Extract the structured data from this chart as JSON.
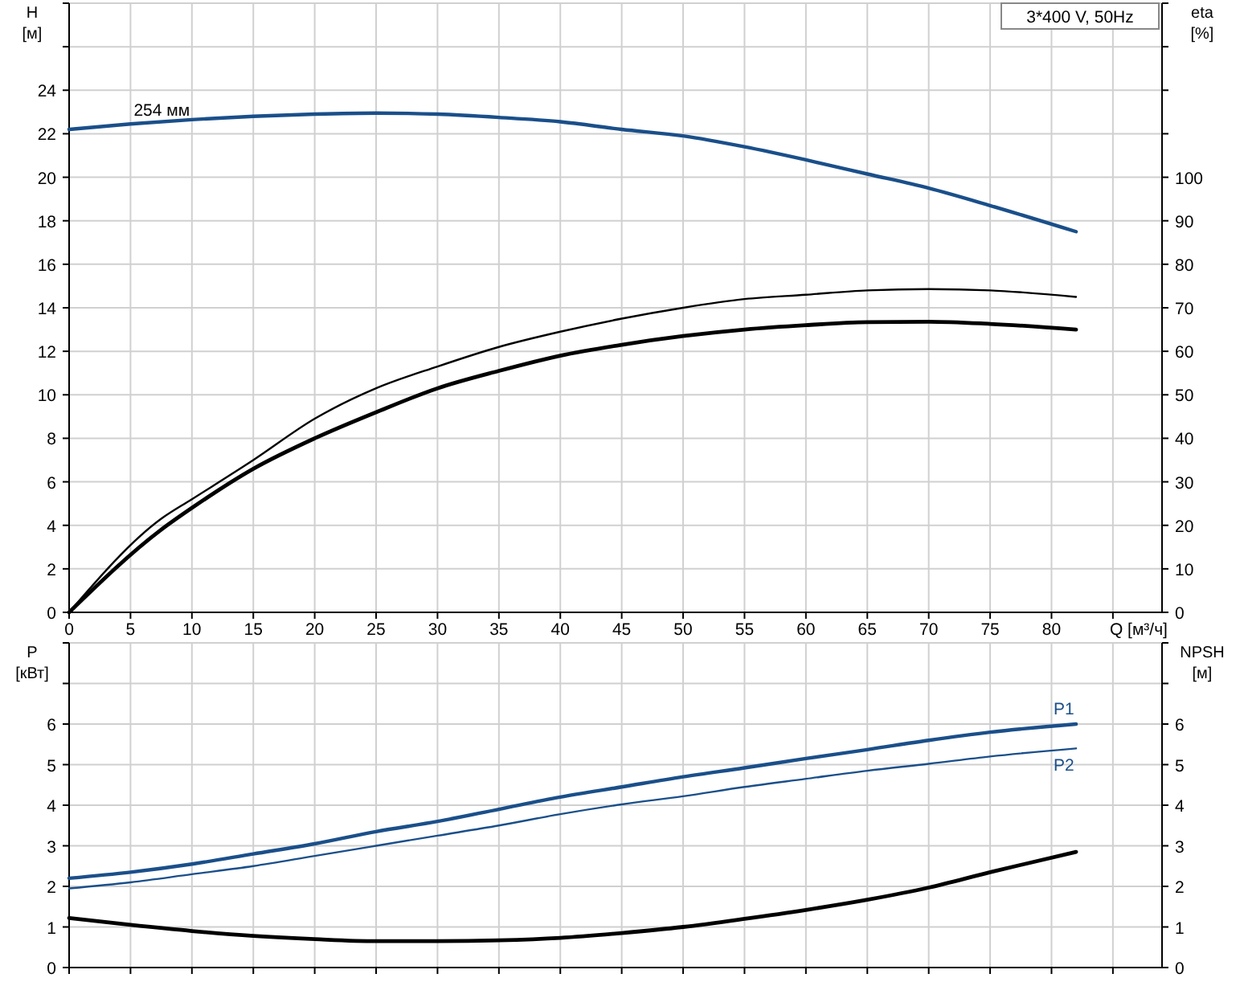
{
  "chart_data": [
    {
      "type": "line",
      "title": "3*400 V, 50Hz",
      "xlabel": "Q [м³/ч]",
      "ylabel": "H [м]",
      "y2label": "eta [%]",
      "xlim": [
        0,
        89
      ],
      "xticks": [
        0,
        5,
        10,
        15,
        20,
        25,
        30,
        35,
        40,
        45,
        50,
        55,
        60,
        65,
        70,
        75,
        80,
        {
          "value": 85,
          "label": null
        }
      ],
      "ylim": [
        0,
        28
      ],
      "yticks": [
        0,
        2,
        4,
        6,
        8,
        10,
        12,
        14,
        16,
        18,
        20,
        22,
        24,
        {
          "value": 26,
          "label": null
        },
        {
          "value": 28,
          "label": null
        }
      ],
      "y2lim": [
        0,
        140
      ],
      "y2ticks": [
        0,
        10,
        20,
        30,
        40,
        50,
        60,
        70,
        80,
        90,
        100,
        {
          "value": 110,
          "label": null
        },
        {
          "value": 120,
          "label": null
        },
        {
          "value": 130,
          "label": null
        },
        {
          "value": 140,
          "label": null
        }
      ],
      "grid": true,
      "series": [
        {
          "name": "254 мм",
          "color": "#1a4f8a",
          "x": [
            0,
            5,
            10,
            15,
            20,
            25,
            30,
            35,
            40,
            45,
            50,
            55,
            60,
            65,
            70,
            75,
            82
          ],
          "values": [
            22.2,
            22.45,
            22.65,
            22.8,
            22.9,
            22.95,
            22.9,
            22.75,
            22.55,
            22.2,
            21.9,
            21.4,
            20.8,
            20.15,
            19.5,
            18.7,
            17.5
          ]
        },
        {
          "color": "#000000",
          "axis": "y2",
          "x": [
            0,
            7.5,
            10,
            15,
            20,
            25,
            30,
            35,
            40,
            45,
            50,
            55,
            60,
            65,
            70,
            75,
            82
          ],
          "values": [
            0,
            21.5,
            26,
            35,
            44.5,
            51.5,
            56.5,
            61,
            64.5,
            67.5,
            70,
            72,
            73,
            74,
            74.3,
            74,
            72.5
          ]
        },
        {
          "color": "#000000",
          "axis": "y2",
          "x": [
            0,
            7.5,
            10,
            15,
            20,
            25,
            30,
            35,
            40,
            45,
            50,
            55,
            60,
            65,
            70,
            75,
            82
          ],
          "values": [
            0,
            19,
            24,
            33,
            40,
            46,
            51.5,
            55.5,
            59,
            61.5,
            63.5,
            65,
            66,
            66.7,
            66.8,
            66.3,
            65
          ]
        }
      ]
    },
    {
      "type": "line",
      "ylabel": "P [кВт]",
      "y2label": "NPSH [м]",
      "xlim": [
        0,
        89
      ],
      "xticks": [
        0,
        5,
        10,
        15,
        20,
        25,
        30,
        35,
        40,
        45,
        50,
        55,
        60,
        65,
        70,
        75,
        80,
        85
      ],
      "ylim": [
        0,
        8
      ],
      "yticks": [
        0,
        1,
        2,
        3,
        4,
        5,
        6,
        {
          "value": 7,
          "label": null
        },
        {
          "value": 8,
          "label": null
        }
      ],
      "y2lim": [
        0,
        8
      ],
      "y2ticks": [
        0,
        1,
        2,
        3,
        4,
        5,
        6,
        {
          "value": 7,
          "label": null
        },
        {
          "value": 8,
          "label": null
        }
      ],
      "grid": true,
      "tick_labels": "y",
      "series": [
        {
          "name": "P1",
          "color": "#1a4f8a",
          "x": [
            0,
            5,
            10,
            15,
            20,
            25,
            30,
            35,
            40,
            45,
            50,
            55,
            60,
            65,
            70,
            75,
            82
          ],
          "values": [
            2.2,
            2.35,
            2.55,
            2.8,
            3.05,
            3.35,
            3.6,
            3.9,
            4.2,
            4.45,
            4.7,
            4.92,
            5.15,
            5.37,
            5.6,
            5.8,
            6.0
          ]
        },
        {
          "name": "P2",
          "color": "#1a4f8a",
          "x": [
            0,
            5,
            10,
            15,
            20,
            25,
            30,
            35,
            40,
            45,
            50,
            55,
            60,
            65,
            70,
            75,
            82
          ],
          "values": [
            1.95,
            2.1,
            2.3,
            2.5,
            2.75,
            3.0,
            3.25,
            3.5,
            3.78,
            4.02,
            4.22,
            4.45,
            4.65,
            4.85,
            5.02,
            5.2,
            5.4
          ]
        },
        {
          "color": "#000000",
          "axis": "y2",
          "x": [
            0,
            5,
            10,
            15,
            20,
            25,
            30,
            35,
            40,
            45,
            50,
            55,
            60,
            65,
            70,
            75,
            82
          ],
          "values": [
            1.22,
            1.05,
            0.9,
            0.78,
            0.7,
            0.65,
            0.65,
            0.67,
            0.73,
            0.85,
            1.0,
            1.2,
            1.42,
            1.67,
            1.97,
            2.35,
            2.85
          ]
        }
      ]
    }
  ]
}
